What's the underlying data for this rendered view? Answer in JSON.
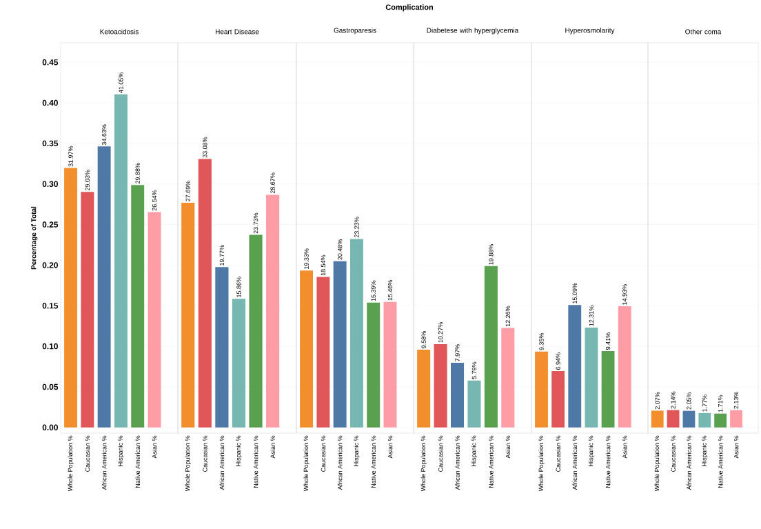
{
  "chart_data": [
    {
      "type": "bar",
      "title": "Ketoacidosis",
      "ylabel": "Percentage of Total",
      "annotations": [
        "Complication"
      ],
      "categories": [
        "Whole Population %",
        "Caucasian %",
        "African American %",
        "Hispanic %",
        "Native American %",
        "Asian %"
      ],
      "values": [
        0.3197,
        0.2903,
        0.3463,
        0.4105,
        0.2988,
        0.2654
      ],
      "value_labels": [
        "31.97%",
        "29.03%",
        "34.63%",
        "41.05%",
        "29.88%",
        "26.54%"
      ],
      "colors": [
        "#f28e2b",
        "#e15759",
        "#4e79a7",
        "#76b7b2",
        "#59a14f",
        "#ff9da7"
      ],
      "ylim": [
        -0.007,
        0.474
      ],
      "yticks": [
        {
          "value": 0,
          "label": "0.00"
        },
        {
          "value": 0.05,
          "label": "0.05"
        },
        {
          "value": 0.1,
          "label": "0.10"
        },
        {
          "value": 0.15,
          "label": "0.15"
        },
        {
          "value": 0.2,
          "label": "0.20"
        },
        {
          "value": 0.25,
          "label": "0.25"
        },
        {
          "value": 0.3,
          "label": "0.30"
        },
        {
          "value": 0.35,
          "label": "0.35"
        },
        {
          "value": 0.4,
          "label": "0.40"
        },
        {
          "value": 0.45,
          "label": "0.45"
        }
      ],
      "grid": "y"
    },
    {
      "type": "bar",
      "title": "Heart Disease",
      "categories": [
        "Whole Population %",
        "Caucasian %",
        "African American %",
        "Hispanic %",
        "Native American %",
        "Asian %"
      ],
      "values": [
        0.2769,
        0.3308,
        0.1977,
        0.1586,
        0.2373,
        0.2867
      ],
      "value_labels": [
        "27.69%",
        "33.08%",
        "19.77%",
        "15.86%",
        "23.73%",
        "28.67%"
      ],
      "colors": [
        "#f28e2b",
        "#e15759",
        "#4e79a7",
        "#76b7b2",
        "#59a14f",
        "#ff9da7"
      ],
      "ylim": [
        -0.007,
        0.474
      ],
      "yticks": [
        0,
        0.05,
        0.1,
        0.15,
        0.2,
        0.25,
        0.3,
        0.35,
        0.4,
        0.45
      ],
      "grid": "y",
      "tick_labels": "x"
    },
    {
      "type": "bar",
      "title": "Gastroparesis",
      "categories": [
        "Whole Population %",
        "Caucasian %",
        "African American %",
        "Hispanic %",
        "Native American %",
        "Asian %"
      ],
      "values": [
        0.1933,
        0.1854,
        0.2048,
        0.2323,
        0.1539,
        0.1546
      ],
      "value_labels": [
        "19.33%",
        "18.54%",
        "20.48%",
        "23.23%",
        "15.39%",
        "15.46%"
      ],
      "colors": [
        "#f28e2b",
        "#e15759",
        "#4e79a7",
        "#76b7b2",
        "#59a14f",
        "#ff9da7"
      ],
      "ylim": [
        -0.007,
        0.474
      ],
      "yticks": [
        0,
        0.05,
        0.1,
        0.15,
        0.2,
        0.25,
        0.3,
        0.35,
        0.4,
        0.45
      ],
      "grid": "y",
      "tick_labels": "x"
    },
    {
      "type": "bar",
      "title": "Diabetese with hyperglycemia",
      "categories": [
        "Whole Population %",
        "Caucasian %",
        "African American %",
        "Hispanic %",
        "Native American %",
        "Asian %"
      ],
      "values": [
        0.0958,
        0.1027,
        0.0797,
        0.0579,
        0.1988,
        0.1226
      ],
      "value_labels": [
        "9.58%",
        "10.27%",
        "7.97%",
        "5.79%",
        "19.88%",
        "12.26%"
      ],
      "colors": [
        "#f28e2b",
        "#e15759",
        "#4e79a7",
        "#76b7b2",
        "#59a14f",
        "#ff9da7"
      ],
      "ylim": [
        -0.007,
        0.474
      ],
      "yticks": [
        0,
        0.05,
        0.1,
        0.15,
        0.2,
        0.25,
        0.3,
        0.35,
        0.4,
        0.45
      ],
      "grid": "y",
      "tick_labels": "x"
    },
    {
      "type": "bar",
      "title": "Hyperosmolarity",
      "categories": [
        "Whole Population %",
        "Caucasian %",
        "African American %",
        "Hispanic %",
        "Native American %",
        "Asian %"
      ],
      "values": [
        0.0935,
        0.0694,
        0.1509,
        0.1231,
        0.0941,
        0.1493
      ],
      "value_labels": [
        "9.35%",
        "6.94%",
        "15.09%",
        "12.31%",
        "9.41%",
        "14.93%"
      ],
      "colors": [
        "#f28e2b",
        "#e15759",
        "#4e79a7",
        "#76b7b2",
        "#59a14f",
        "#ff9da7"
      ],
      "ylim": [
        -0.007,
        0.474
      ],
      "yticks": [
        0,
        0.05,
        0.1,
        0.15,
        0.2,
        0.25,
        0.3,
        0.35,
        0.4,
        0.45
      ],
      "grid": "y",
      "tick_labels": "x"
    },
    {
      "type": "bar",
      "title": "Other coma",
      "categories": [
        "Whole Population %",
        "Caucasian %",
        "African American %",
        "Hispanic %",
        "Native American %",
        "Asian %"
      ],
      "values": [
        0.0207,
        0.0214,
        0.0205,
        0.0177,
        0.0171,
        0.0213
      ],
      "value_labels": [
        "2.07%",
        "2.14%",
        "2.05%",
        "1.77%",
        "1.71%",
        "2.13%"
      ],
      "colors": [
        "#f28e2b",
        "#e15759",
        "#4e79a7",
        "#76b7b2",
        "#59a14f",
        "#ff9da7"
      ],
      "ylim": [
        -0.007,
        0.474
      ],
      "yticks": [
        0,
        0.05,
        0.1,
        0.15,
        0.2,
        0.25,
        0.3,
        0.35,
        0.4,
        0.45
      ],
      "grid": "y",
      "tick_labels": "x"
    }
  ]
}
